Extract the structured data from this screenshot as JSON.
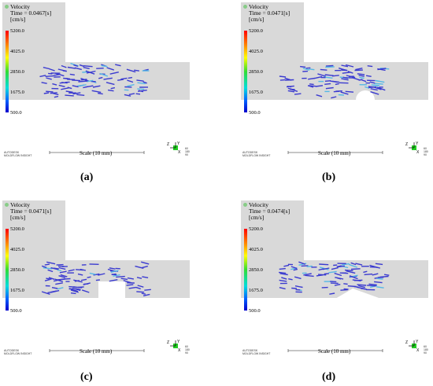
{
  "legend": {
    "title": "Velocity",
    "unit": "[cm/s]",
    "ticks": [
      "5200.0",
      "4025.0",
      "2850.0",
      "1675.0",
      "500.0"
    ],
    "colors": [
      "#ff0000",
      "#ff8800",
      "#ffff00",
      "#33dd33",
      "#00dddd",
      "#0066ff",
      "#0000cc"
    ]
  },
  "scale_label": "Scale (10 mm)",
  "brand": {
    "line1": "AUTODESK",
    "line2": "MOLDFLOW INSIGHT"
  },
  "axis": {
    "z": "Z",
    "y": "Y",
    "x": "X",
    "nums": [
      "60",
      "180",
      "90"
    ]
  },
  "panels": [
    {
      "id": "a",
      "caption": "(a)",
      "time": "Time = 0.0467[s]",
      "obstacle": "none"
    },
    {
      "id": "b",
      "caption": "(b)",
      "time": "Time = 0.0471[s]",
      "obstacle": "semicircle"
    },
    {
      "id": "c",
      "caption": "(c)",
      "time": "Time = 0.0471[s]",
      "obstacle": "rectangle"
    },
    {
      "id": "d",
      "caption": "(d)",
      "time": "Time = 0.0474[s]",
      "obstacle": "triangle"
    }
  ],
  "colors": {
    "mold": "#d9d9d9",
    "vector": "#3a3ad0",
    "vector_fast": "#55b8e6",
    "axis_box": "#22cc22"
  }
}
